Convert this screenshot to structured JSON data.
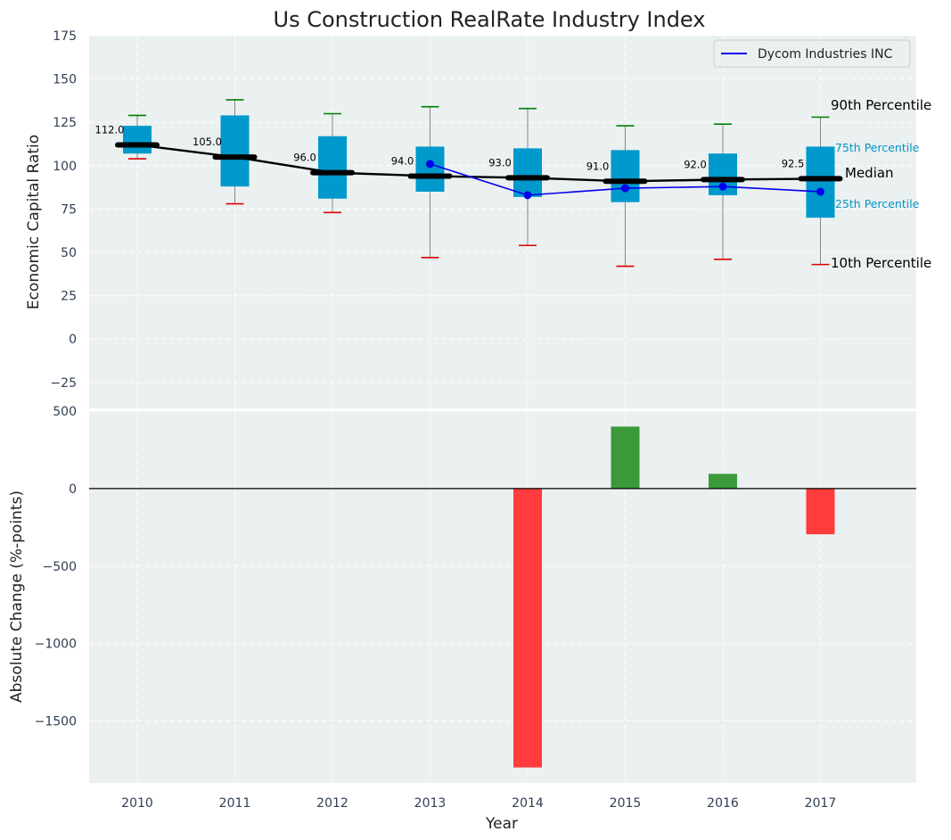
{
  "chart_data": [
    {
      "type": "box",
      "title": "Us Construction RealRate Industry Index",
      "ylabel": "Economic Capital Ratio",
      "ylim": [
        -40,
        175
      ],
      "yticks": [
        175,
        150,
        125,
        100,
        75,
        50,
        25,
        0,
        -25
      ],
      "categories": [
        "2010",
        "2011",
        "2012",
        "2013",
        "2014",
        "2015",
        "2016",
        "2017"
      ],
      "grid": true,
      "legend": {
        "position": "top-right",
        "entries": [
          "Dycom Industries INC"
        ]
      },
      "boxes": [
        {
          "year": "2010",
          "p10": 104,
          "p25": 107,
          "median": 112,
          "p75": 123,
          "p90": 129
        },
        {
          "year": "2011",
          "p10": 78,
          "p25": 88,
          "median": 105,
          "p75": 129,
          "p90": 138
        },
        {
          "year": "2012",
          "p10": 73,
          "p25": 81,
          "median": 96,
          "p75": 117,
          "p90": 130
        },
        {
          "year": "2013",
          "p10": 47,
          "p25": 85,
          "median": 94,
          "p75": 111,
          "p90": 134
        },
        {
          "year": "2014",
          "p10": 54,
          "p25": 82,
          "median": 93,
          "p75": 110,
          "p90": 133
        },
        {
          "year": "2015",
          "p10": 42,
          "p25": 79,
          "median": 91,
          "p75": 109,
          "p90": 123
        },
        {
          "year": "2016",
          "p10": 46,
          "p25": 83,
          "median": 92,
          "p75": 107,
          "p90": 124
        },
        {
          "year": "2017",
          "p10": 43,
          "p25": 70,
          "median": 92.5,
          "p75": 111,
          "p90": 128
        }
      ],
      "median_labels": [
        "112.0",
        "105.0",
        "96.0",
        "94.0",
        "93.0",
        "91.0",
        "92.0",
        "92.5"
      ],
      "company_series": {
        "name": "Dycom Industries INC",
        "x": [
          "2013",
          "2014",
          "2015",
          "2016",
          "2017"
        ],
        "values": [
          101,
          83,
          87,
          88,
          85
        ]
      },
      "annotations": {
        "p90": "90th Percentile",
        "p75": "75th Percentile",
        "median": "Median",
        "p25": "25th Percentile",
        "p10": "10th Percentile"
      },
      "colors": {
        "box": "#0099cc",
        "median": "#000000",
        "company": "#0000ee",
        "whisker_high": "#008000",
        "whisker_low": "#dd0000",
        "background": "#ebf0f0"
      }
    },
    {
      "type": "bar",
      "xlabel": "Year",
      "ylabel": "Absolute Change (%-points)",
      "ylim": [
        -1900,
        500
      ],
      "yticks": [
        500,
        0,
        -500,
        -1000,
        -1500
      ],
      "categories": [
        "2010",
        "2011",
        "2012",
        "2013",
        "2014",
        "2015",
        "2016",
        "2017"
      ],
      "values": [
        null,
        null,
        null,
        null,
        -1800,
        400,
        95,
        -295
      ],
      "colors": {
        "positive": "#3a9a3a",
        "negative": "#ff3b3b"
      }
    }
  ]
}
